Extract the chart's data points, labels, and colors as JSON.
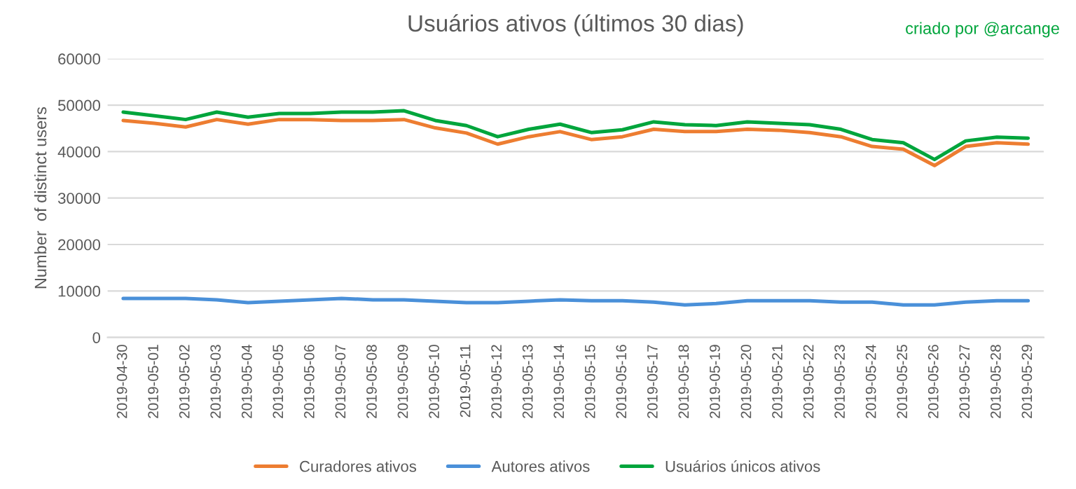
{
  "chart_data": {
    "type": "line",
    "title": "Usuários ativos (últimos 30 dias)",
    "ylabel": "Number  of distinct users",
    "annotations": [
      "criado por @arcange"
    ],
    "categories": [
      "2019-04-30",
      "2019-05-01",
      "2019-05-02",
      "2019-05-03",
      "2019-05-04",
      "2019-05-05",
      "2019-05-06",
      "2019-05-07",
      "2019-05-08",
      "2019-05-09",
      "2019-05-10",
      "2019-05-11",
      "2019-05-12",
      "2019-05-13",
      "2019-05-14",
      "2019-05-15",
      "2019-05-16",
      "2019-05-17",
      "2019-05-18",
      "2019-05-19",
      "2019-05-20",
      "2019-05-21",
      "2019-05-22",
      "2019-05-23",
      "2019-05-24",
      "2019-05-25",
      "2019-05-26",
      "2019-05-27",
      "2019-05-28",
      "2019-05-29"
    ],
    "series": [
      {
        "name": "Curadores ativos",
        "color": "#ed7d31",
        "values": [
          46700,
          46100,
          45300,
          46900,
          45900,
          46900,
          46900,
          46700,
          46700,
          46900,
          45100,
          44000,
          41600,
          43200,
          44300,
          42600,
          43200,
          44800,
          44300,
          44300,
          44800,
          44600,
          44100,
          43200,
          41100,
          40500,
          37000,
          41100,
          41900,
          41600
        ]
      },
      {
        "name": "Autores ativos",
        "color": "#4a90d9",
        "values": [
          8400,
          8400,
          8400,
          8100,
          7500,
          7800,
          8100,
          8400,
          8100,
          8100,
          7800,
          7500,
          7500,
          7800,
          8100,
          7900,
          7900,
          7600,
          7000,
          7300,
          7900,
          7900,
          7900,
          7600,
          7600,
          7000,
          7000,
          7600,
          7900,
          7900
        ]
      },
      {
        "name": "Usuários únicos ativos",
        "color": "#00a53c",
        "values": [
          48500,
          47700,
          46900,
          48500,
          47400,
          48200,
          48200,
          48500,
          48500,
          48800,
          46700,
          45600,
          43200,
          44800,
          45900,
          44100,
          44700,
          46400,
          45800,
          45600,
          46400,
          46100,
          45800,
          44800,
          42600,
          41900,
          38300,
          42300,
          43100,
          42900
        ]
      }
    ],
    "ylim": [
      0,
      60000
    ],
    "yticks": [
      0,
      10000,
      20000,
      30000,
      40000,
      50000,
      60000
    ],
    "grid": "y",
    "legend": "bottom",
    "marker": "none",
    "line_style": "solid"
  }
}
